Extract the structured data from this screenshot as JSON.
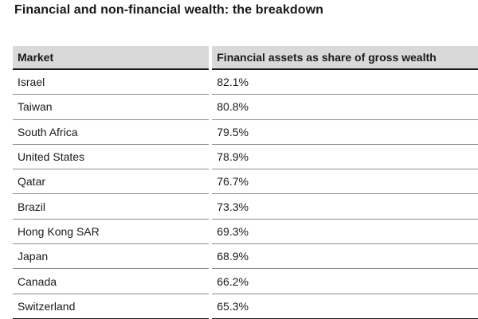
{
  "title": "Financial and non-financial wealth: the breakdown",
  "chart_data": {
    "type": "table",
    "title": "Financial and non-financial wealth: the breakdown",
    "columns": [
      "Market",
      "Financial assets as share of gross wealth"
    ],
    "rows": [
      {
        "market": "Israel",
        "value": "82.1%"
      },
      {
        "market": "Taiwan",
        "value": "80.8%"
      },
      {
        "market": "South Africa",
        "value": "79.5%"
      },
      {
        "market": "United States",
        "value": "78.9%"
      },
      {
        "market": "Qatar",
        "value": "76.7%"
      },
      {
        "market": "Brazil",
        "value": "73.3%"
      },
      {
        "market": "Hong Kong SAR",
        "value": "69.3%"
      },
      {
        "market": "Japan",
        "value": "68.9%"
      },
      {
        "market": "Canada",
        "value": "66.2%"
      },
      {
        "market": "Switzerland",
        "value": "65.3%"
      }
    ]
  }
}
